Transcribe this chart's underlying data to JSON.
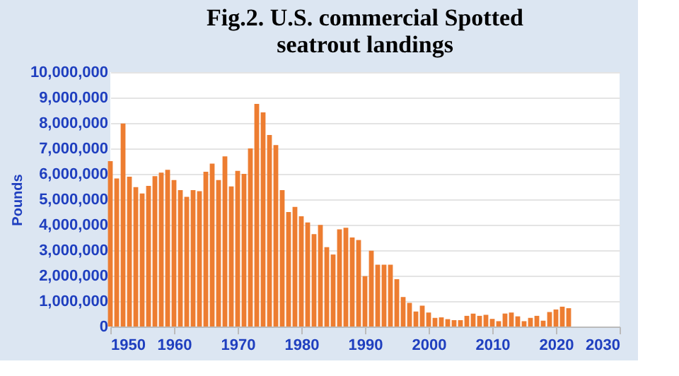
{
  "chart_data": {
    "type": "bar",
    "title": "Fig.2. U.S. commercial Spotted seatrout landings",
    "ylabel": "Pounds",
    "x": [
      1950,
      1951,
      1952,
      1953,
      1954,
      1955,
      1956,
      1957,
      1958,
      1959,
      1960,
      1961,
      1962,
      1963,
      1964,
      1965,
      1966,
      1967,
      1968,
      1969,
      1970,
      1971,
      1972,
      1973,
      1974,
      1975,
      1976,
      1977,
      1978,
      1979,
      1980,
      1981,
      1982,
      1983,
      1984,
      1985,
      1986,
      1987,
      1988,
      1989,
      1990,
      1991,
      1992,
      1993,
      1994,
      1995,
      1996,
      1997,
      1998,
      1999,
      2000,
      2001,
      2002,
      2003,
      2004,
      2005,
      2006,
      2007,
      2008,
      2009,
      2010,
      2011,
      2012,
      2013,
      2014,
      2015,
      2016,
      2017,
      2018,
      2019,
      2020,
      2021,
      2022
    ],
    "values": [
      6500000,
      5820000,
      7980000,
      5890000,
      5480000,
      5230000,
      5530000,
      5910000,
      6050000,
      6160000,
      5760000,
      5360000,
      5100000,
      5360000,
      5320000,
      6080000,
      6400000,
      5760000,
      6690000,
      5510000,
      6120000,
      6000000,
      7000000,
      8750000,
      8420000,
      7530000,
      7130000,
      5360000,
      4500000,
      4700000,
      4330000,
      4090000,
      3630000,
      3990000,
      3120000,
      2830000,
      3820000,
      3880000,
      3500000,
      3400000,
      1980000,
      2980000,
      2430000,
      2430000,
      2430000,
      1860000,
      1160000,
      930000,
      590000,
      820000,
      550000,
      340000,
      360000,
      290000,
      250000,
      250000,
      420000,
      510000,
      420000,
      460000,
      300000,
      210000,
      510000,
      550000,
      400000,
      210000,
      340000,
      420000,
      230000,
      570000,
      670000,
      780000,
      720000
    ],
    "color": "#ed7d31",
    "xlim": [
      1950,
      2030
    ],
    "xticks": [
      1950,
      1960,
      1970,
      1980,
      1990,
      2000,
      2010,
      2020,
      2030
    ],
    "ylim": [
      0,
      10000000
    ],
    "yticks": [
      0,
      {
        "value": 1000000,
        "label": "1,000,000"
      },
      {
        "value": 2000000,
        "label": "2,000,000"
      },
      {
        "value": 3000000,
        "label": "3,000,000"
      },
      {
        "value": 4000000,
        "label": "4,000,000"
      },
      {
        "value": 5000000,
        "label": "5,000,000"
      },
      {
        "value": 6000000,
        "label": "6,000,000"
      },
      {
        "value": 7000000,
        "label": "7,000,000"
      },
      {
        "value": 8000000,
        "label": "8,000,000"
      },
      {
        "value": 9000000,
        "label": "9,000,000"
      },
      {
        "value": 10000000,
        "label": "10,000,000"
      }
    ],
    "grid": "y"
  }
}
